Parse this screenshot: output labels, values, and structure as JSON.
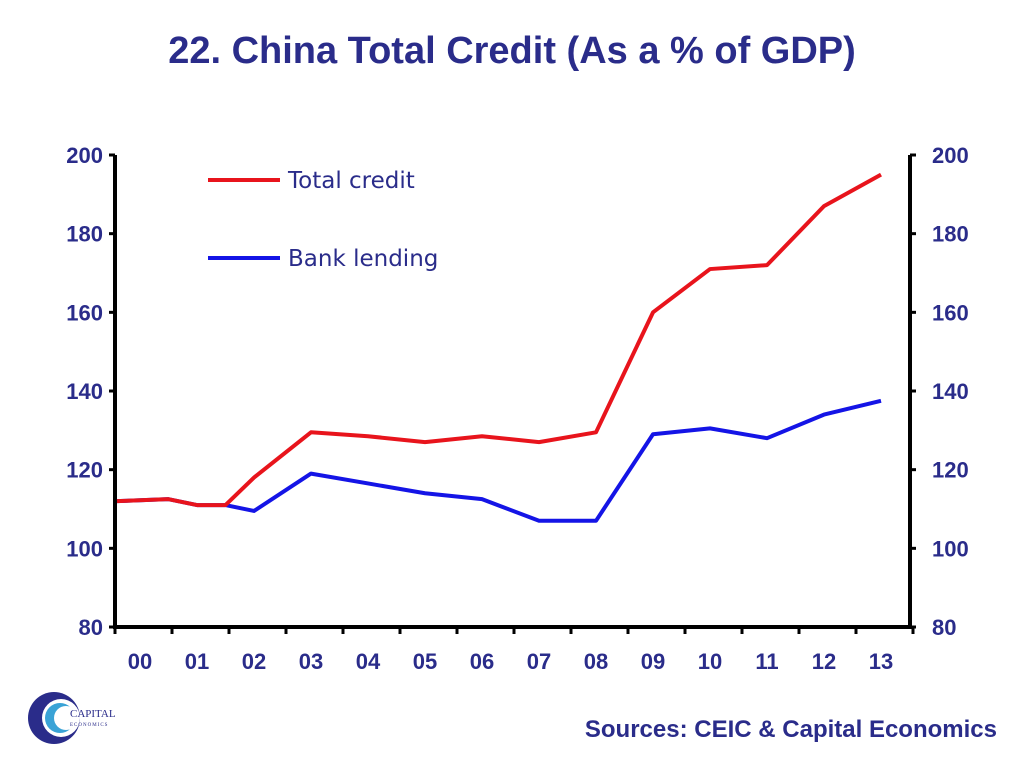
{
  "page": {
    "title": "22. China Total Credit (As a % of GDP)",
    "source": "Sources: CEIC & Capital Economics",
    "logo": {
      "icon": "capital-economics-logo-icon",
      "text_line1": "CAPITAL",
      "text_line2": "ECONOMICS"
    }
  },
  "chart_data": {
    "type": "line",
    "x_categories": [
      "00",
      "01",
      "02",
      "03",
      "04",
      "05",
      "06",
      "07",
      "08",
      "09",
      "10",
      "11",
      "12",
      "13"
    ],
    "ylim": [
      80,
      200
    ],
    "y_right_lim": [
      80,
      200
    ],
    "y_ticks": [
      80,
      100,
      120,
      140,
      160,
      180,
      200
    ],
    "y_right_ticks": [
      80,
      100,
      120,
      140,
      160,
      180,
      200
    ],
    "grid": false,
    "legend_placement": "top-left",
    "series": [
      {
        "name": "Total credit",
        "color": "#e8141c",
        "points": [
          [
            "00",
            112
          ],
          [
            "00.5",
            112.5
          ],
          [
            "01",
            111
          ],
          [
            "01.5",
            111
          ],
          [
            "02",
            118
          ],
          [
            "03",
            129.5
          ],
          [
            "04",
            128.5
          ],
          [
            "05",
            127
          ],
          [
            "06",
            128.5
          ],
          [
            "07",
            127
          ],
          [
            "08",
            129.5
          ],
          [
            "09",
            160
          ],
          [
            "10",
            171
          ],
          [
            "11",
            172
          ],
          [
            "12",
            187
          ],
          [
            "13",
            195
          ]
        ]
      },
      {
        "name": "Bank lending",
        "color": "#1414e6",
        "points": [
          [
            "00",
            112
          ],
          [
            "00.5",
            112.5
          ],
          [
            "01",
            111
          ],
          [
            "01.5",
            111
          ],
          [
            "02",
            109.5
          ],
          [
            "03",
            119
          ],
          [
            "04",
            116.5
          ],
          [
            "05",
            114
          ],
          [
            "06",
            112.5
          ],
          [
            "07",
            107
          ],
          [
            "08",
            107
          ],
          [
            "09",
            129
          ],
          [
            "10",
            130.5
          ],
          [
            "11",
            128
          ],
          [
            "12",
            134
          ],
          [
            "13",
            137.5
          ]
        ]
      }
    ]
  }
}
